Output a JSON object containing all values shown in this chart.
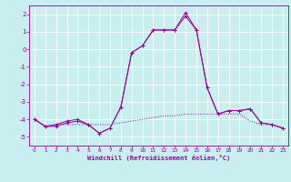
{
  "xlabel": "Windchill (Refroidissement éolien,°C)",
  "background_color": "#c8eef0",
  "grid_color": "#ffffff",
  "line_color": "#990099",
  "xlim": [
    -0.5,
    23.5
  ],
  "ylim": [
    -5.5,
    2.5
  ],
  "yticks": [
    -5,
    -4,
    -3,
    -2,
    -1,
    0,
    1,
    2
  ],
  "xticks": [
    0,
    1,
    2,
    3,
    4,
    5,
    6,
    7,
    8,
    9,
    10,
    11,
    12,
    13,
    14,
    15,
    16,
    17,
    18,
    19,
    20,
    21,
    22,
    23
  ],
  "series1_x": [
    0,
    1,
    2,
    3,
    4,
    5,
    6,
    7,
    8,
    9,
    10,
    11,
    12,
    13,
    14,
    15,
    16,
    17,
    18,
    19,
    20,
    21,
    22,
    23
  ],
  "series1_y": [
    -4.0,
    -4.4,
    -4.3,
    -4.1,
    -4.0,
    -4.3,
    -4.8,
    -4.5,
    -3.3,
    -0.2,
    0.2,
    1.1,
    1.1,
    1.1,
    2.1,
    1.1,
    -2.2,
    -3.7,
    -3.5,
    -3.5,
    -3.4,
    -4.2,
    -4.3,
    -4.5
  ],
  "series2_x": [
    0,
    1,
    2,
    3,
    4,
    5,
    6,
    7,
    8,
    9,
    10,
    11,
    12,
    13,
    14,
    15,
    16,
    17,
    18,
    19,
    20,
    21,
    22,
    23
  ],
  "series2_y": [
    -4.0,
    -4.4,
    -4.3,
    -4.3,
    -4.3,
    -4.3,
    -4.3,
    -4.3,
    -4.2,
    -4.1,
    -4.0,
    -3.9,
    -3.8,
    -3.8,
    -3.7,
    -3.7,
    -3.7,
    -3.7,
    -3.7,
    -3.7,
    -4.1,
    -4.3,
    -4.3,
    -4.5
  ],
  "series3_x": [
    0,
    1,
    2,
    3,
    4,
    5,
    6,
    7,
    8,
    9,
    10,
    11,
    12,
    13,
    14,
    15,
    16,
    17,
    18,
    19,
    20,
    21,
    22,
    23
  ],
  "series3_y": [
    -4.0,
    -4.4,
    -4.4,
    -4.2,
    -4.1,
    -4.3,
    -4.8,
    -4.5,
    -3.3,
    -0.2,
    0.2,
    1.1,
    1.1,
    1.1,
    1.9,
    1.1,
    -2.2,
    -3.7,
    -3.5,
    -3.5,
    -3.4,
    -4.2,
    -4.3,
    -4.5
  ]
}
